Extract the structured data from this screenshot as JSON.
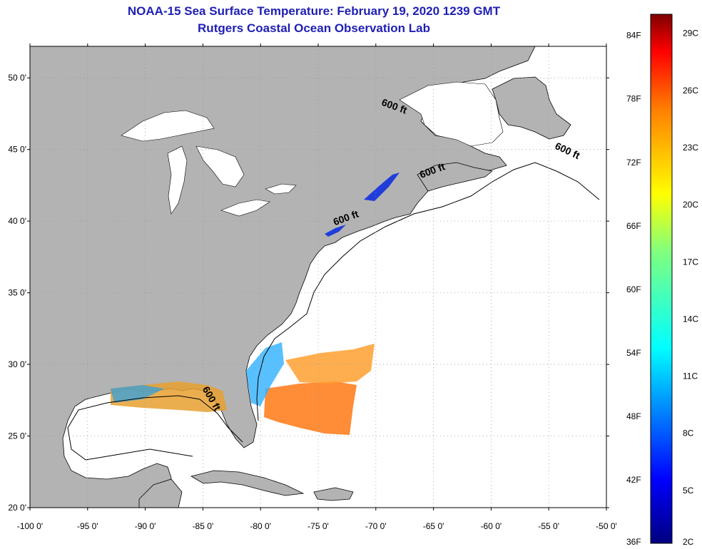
{
  "title": {
    "line1": "NOAA-15 Sea Surface Temperature:  February 19, 2020 1239 GMT",
    "line2": "Rutgers Coastal Ocean Observation Lab"
  },
  "axes": {
    "lat_labels": [
      "50 0'",
      "45 0'",
      "40 0'",
      "35 0'",
      "30 0'",
      "25 0'",
      "20 0'"
    ],
    "lat_values": [
      50,
      45,
      40,
      35,
      30,
      25,
      20
    ],
    "lon_labels": [
      "-100 0'",
      "-95 0'",
      "-90 0'",
      "-85 0'",
      "-80 0'",
      "-75 0'",
      "-70 0'",
      "-65 0'",
      "-60 0'",
      "-55 0'",
      "-50 0'"
    ],
    "lon_values": [
      -100,
      -95,
      -90,
      -85,
      -80,
      -75,
      -70,
      -65,
      -60,
      -55,
      -50
    ]
  },
  "contour": {
    "label": "600 ft",
    "positions": [
      [
        -68.5,
        47.8
      ],
      [
        -53.5,
        44.7
      ],
      [
        -65.0,
        43.3
      ],
      [
        -72.5,
        40.0
      ],
      [
        -84.5,
        27.5
      ]
    ]
  },
  "colorbar": {
    "fahrenheit_labels": [
      "84F",
      "78F",
      "72F",
      "66F",
      "60F",
      "54F",
      "48F",
      "42F",
      "36F"
    ],
    "celsius_labels": [
      "29C",
      "26C",
      "23C",
      "20C",
      "17C",
      "14C",
      "11C",
      "8C",
      "5C",
      "2C"
    ],
    "min_f": 36,
    "max_f": 86,
    "stops": [
      "#00007f",
      "#0000ff",
      "#007fff",
      "#00ffff",
      "#7fff7f",
      "#ffff00",
      "#ff7f00",
      "#ff0000",
      "#7f0000"
    ]
  },
  "colors": {
    "land": "#b3b3b3",
    "ocean": "#ffffff",
    "title": "#1f1fb4"
  }
}
